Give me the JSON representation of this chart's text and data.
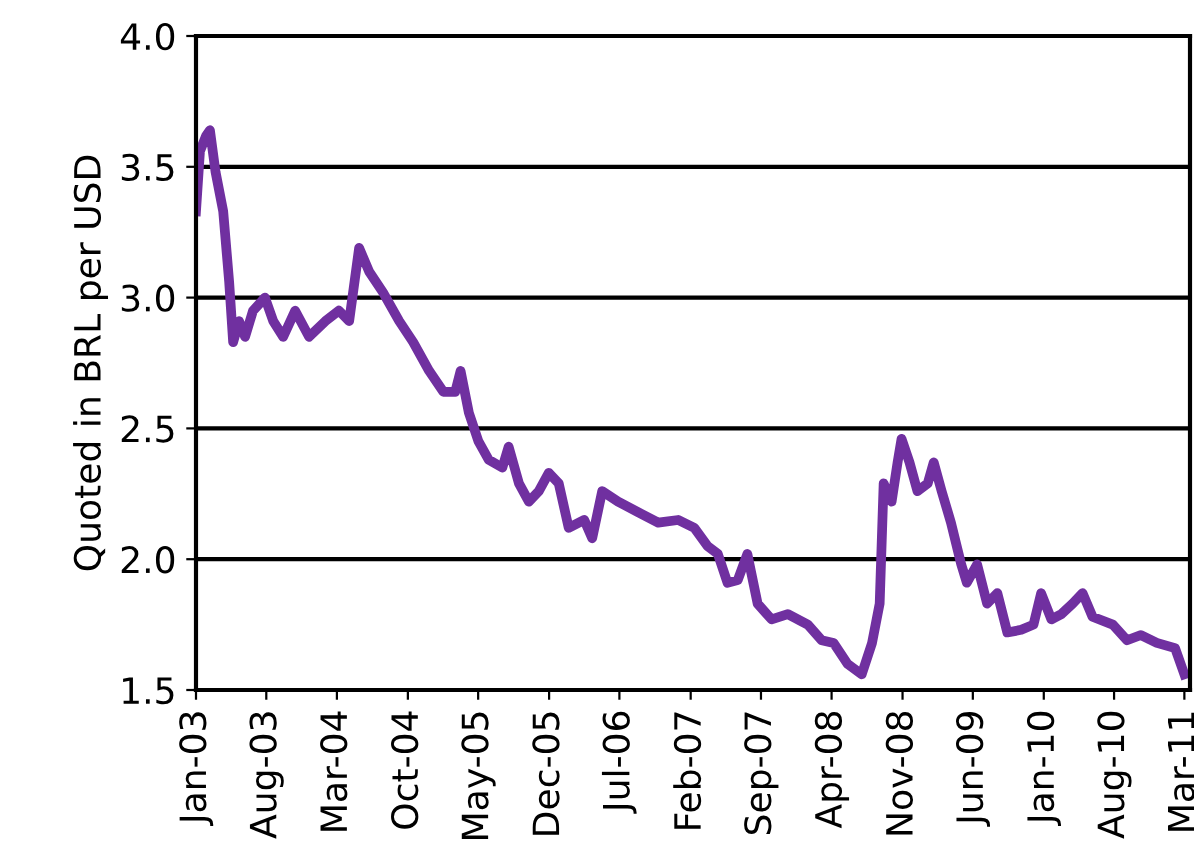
{
  "chart_data": {
    "type": "line",
    "ylabel": "Quoted in BRL per USD",
    "x": [
      "2003-01-01",
      "2003-01-13",
      "2003-02-01",
      "2003-02-12",
      "2003-03-01",
      "2003-03-24",
      "2003-04-11",
      "2003-04-23",
      "2003-05-11",
      "2003-05-29",
      "2003-06-22",
      "2003-07-28",
      "2003-08-22",
      "2003-09-21",
      "2003-10-27",
      "2003-12-08",
      "2004-01-26",
      "2004-03-07",
      "2004-04-07",
      "2004-05-07",
      "2004-06-06",
      "2004-07-18",
      "2004-09-05",
      "2004-10-17",
      "2004-12-04",
      "2005-01-16",
      "2005-02-21",
      "2005-03-09",
      "2005-04-03",
      "2005-05-02",
      "2005-06-02",
      "2005-07-13",
      "2005-08-01",
      "2005-09-01",
      "2005-10-01",
      "2005-10-31",
      "2005-11-30",
      "2005-12-30",
      "2006-01-29",
      "2006-03-17",
      "2006-04-10",
      "2006-05-10",
      "2006-06-27",
      "2006-08-26",
      "2006-10-26",
      "2006-12-25",
      "2007-02-12",
      "2007-03-24",
      "2007-04-24",
      "2007-05-23",
      "2007-06-23",
      "2007-07-22",
      "2007-08-22",
      "2007-10-03",
      "2007-11-21",
      "2008-01-20",
      "2008-03-02",
      "2008-04-07",
      "2008-05-19",
      "2008-07-01",
      "2008-08-01",
      "2008-08-24",
      "2008-09-05",
      "2008-09-29",
      "2008-10-17",
      "2008-10-29",
      "2008-11-22",
      "2008-12-16",
      "2009-01-16",
      "2009-02-03",
      "2009-02-27",
      "2009-03-27",
      "2009-04-27",
      "2009-05-14",
      "2009-06-14",
      "2009-07-14",
      "2009-08-14",
      "2009-09-13",
      "2009-10-25",
      "2009-12-01",
      "2009-12-24",
      "2010-01-24",
      "2010-02-23",
      "2010-03-29",
      "2010-04-28",
      "2010-05-28",
      "2010-07-28",
      "2010-09-09",
      "2010-10-21",
      "2010-12-08",
      "2011-02-01",
      "2011-03-01"
    ],
    "series": [
      {
        "color": "#7030a0",
        "values": [
          3.33,
          3.56,
          3.62,
          3.64,
          3.48,
          3.33,
          3.06,
          2.83,
          2.91,
          2.85,
          2.95,
          3.0,
          2.91,
          2.85,
          2.95,
          2.85,
          2.91,
          2.95,
          2.91,
          3.19,
          3.1,
          3.02,
          2.91,
          2.83,
          2.72,
          2.64,
          2.64,
          2.72,
          2.56,
          2.45,
          2.38,
          2.35,
          2.43,
          2.29,
          2.22,
          2.26,
          2.33,
          2.29,
          2.12,
          2.15,
          2.08,
          2.26,
          2.22,
          2.18,
          2.14,
          2.15,
          2.12,
          2.05,
          2.02,
          1.91,
          1.92,
          2.02,
          1.83,
          1.77,
          1.79,
          1.75,
          1.69,
          1.68,
          1.6,
          1.56,
          1.68,
          1.83,
          2.29,
          2.22,
          2.37,
          2.46,
          2.37,
          2.26,
          2.29,
          2.37,
          2.26,
          2.14,
          1.98,
          1.91,
          1.98,
          1.83,
          1.87,
          1.72,
          1.73,
          1.75,
          1.87,
          1.77,
          1.79,
          1.83,
          1.87,
          1.78,
          1.75,
          1.69,
          1.71,
          1.68,
          1.66,
          1.56
        ]
      }
    ],
    "xlim": [
      "2003-01-01",
      "2011-03-18"
    ],
    "xticks": [
      {
        "value": "2003-01-01",
        "label": "Jan-03"
      },
      {
        "value": "2003-08-01",
        "label": "Aug-03"
      },
      {
        "value": "2004-03-01",
        "label": "Mar-04"
      },
      {
        "value": "2004-10-01",
        "label": "Oct-04"
      },
      {
        "value": "2005-05-01",
        "label": "May-05"
      },
      {
        "value": "2005-12-01",
        "label": "Dec-05"
      },
      {
        "value": "2006-07-01",
        "label": "Jul-06"
      },
      {
        "value": "2007-02-01",
        "label": "Feb-07"
      },
      {
        "value": "2007-09-01",
        "label": "Sep-07"
      },
      {
        "value": "2008-04-01",
        "label": "Apr-08"
      },
      {
        "value": "2008-11-01",
        "label": "Nov-08"
      },
      {
        "value": "2009-06-01",
        "label": "Jun-09"
      },
      {
        "value": "2010-01-01",
        "label": "Jan-10"
      },
      {
        "value": "2010-08-01",
        "label": "Aug-10"
      },
      {
        "value": "2011-03-01",
        "label": "Mar-11"
      }
    ],
    "ylim": [
      1.5,
      4.0
    ],
    "yticks": [
      {
        "value": 1.5,
        "label": "1.5"
      },
      {
        "value": 2.0,
        "label": "2.0"
      },
      {
        "value": 2.5,
        "label": "2.5"
      },
      {
        "value": 3.0,
        "label": "3.0"
      },
      {
        "value": 3.5,
        "label": "3.5"
      },
      {
        "value": 4.0,
        "label": "4.0"
      }
    ],
    "grid": "y",
    "marker": "none",
    "line_style": "solid",
    "legend": false
  }
}
